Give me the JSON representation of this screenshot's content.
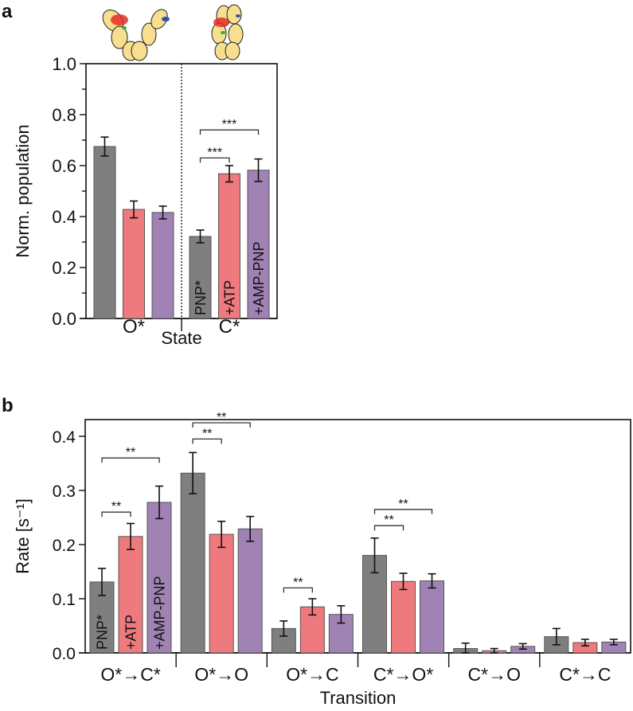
{
  "colors": {
    "PNP*": "#7f7f7f",
    "+ATP": "#ee7a7e",
    "+AMP-PNP": "#a083b4",
    "axis": "#111111"
  },
  "chart_data": [
    {
      "panel": "a",
      "type": "bar",
      "xlabel": "State",
      "ylabel": "Norm. population",
      "ylim": [
        0,
        1.0
      ],
      "yticks": [
        "0.0",
        "0.2",
        "0.4",
        "0.6",
        "0.8",
        "1.0"
      ],
      "categories": [
        "O*",
        "C*"
      ],
      "series": [
        {
          "name": "PNP*",
          "values": [
            0.675,
            0.322
          ],
          "errors": [
            0.037,
            0.025
          ]
        },
        {
          "name": "+ATP",
          "values": [
            0.428,
            0.568
          ],
          "errors": [
            0.033,
            0.032
          ]
        },
        {
          "name": "+AMP-PNP",
          "values": [
            0.416,
            0.582
          ],
          "errors": [
            0.025,
            0.044
          ]
        }
      ],
      "significance": [
        {
          "category": "C*",
          "from": "PNP*",
          "to": "+ATP",
          "label": "***",
          "level": 0.63
        },
        {
          "category": "C*",
          "from": "PNP*",
          "to": "+AMP-PNP",
          "label": "***",
          "level": 0.74
        }
      ],
      "legend": "in-bar labels on C* group"
    },
    {
      "panel": "b",
      "type": "bar",
      "xlabel": "Transition",
      "ylabel": "Rate [s⁻¹]",
      "ylim": [
        0,
        0.45
      ],
      "yticks": [
        "0.0",
        "0.1",
        "0.2",
        "0.3",
        "0.4"
      ],
      "categories": [
        "O*→C*",
        "O*→O",
        "O*→C",
        "C*→O*",
        "C*→O",
        "C*→C"
      ],
      "series": [
        {
          "name": "PNP*",
          "values": [
            0.131,
            0.332,
            0.045,
            0.18,
            0.008,
            0.03
          ],
          "errors": [
            0.025,
            0.038,
            0.014,
            0.032,
            0.01,
            0.015
          ]
        },
        {
          "name": "+ATP",
          "values": [
            0.215,
            0.219,
            0.085,
            0.132,
            0.004,
            0.019
          ],
          "errors": [
            0.024,
            0.024,
            0.015,
            0.015,
            0.004,
            0.006
          ]
        },
        {
          "name": "+AMP-PNP",
          "values": [
            0.278,
            0.229,
            0.071,
            0.133,
            0.012,
            0.02
          ],
          "errors": [
            0.03,
            0.023,
            0.016,
            0.013,
            0.005,
            0.005
          ]
        }
      ],
      "significance": [
        {
          "category": "O*→C*",
          "from": "PNP*",
          "to": "+ATP",
          "label": "**",
          "level": 0.26
        },
        {
          "category": "O*→C*",
          "from": "PNP*",
          "to": "+AMP-PNP",
          "label": "**",
          "level": 0.36
        },
        {
          "category": "O*→O",
          "from": "PNP*",
          "to": "+ATP",
          "label": "**",
          "level": 0.395
        },
        {
          "category": "O*→O",
          "from": "PNP*",
          "to": "+AMP-PNP",
          "label": "**",
          "level": 0.425
        },
        {
          "category": "O*→C",
          "from": "PNP*",
          "to": "+ATP",
          "label": "**",
          "level": 0.12
        },
        {
          "category": "C*→O*",
          "from": "PNP*",
          "to": "+ATP",
          "label": "**",
          "level": 0.235
        },
        {
          "category": "C*→O*",
          "from": "PNP*",
          "to": "+AMP-PNP",
          "label": "**",
          "level": 0.265
        }
      ],
      "legend": "in-bar labels on O*→C* group"
    }
  ]
}
